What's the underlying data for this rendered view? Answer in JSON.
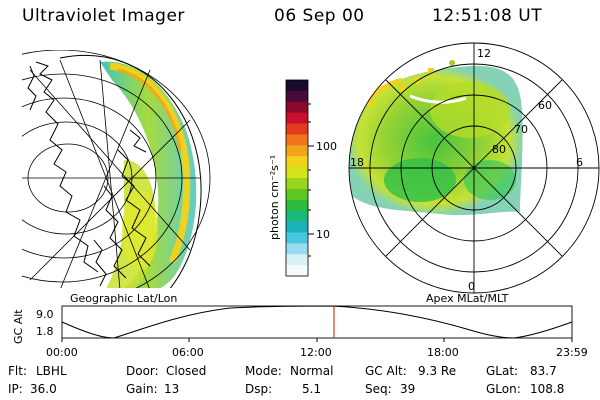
{
  "header": {
    "title": "Ultraviolet Imager",
    "date": "06 Sep 00",
    "time": "12:51:08 UT"
  },
  "left_panel": {
    "caption": "Geographic Lat/Lon"
  },
  "colorbar": {
    "unit_label": "photon cm⁻²s⁻¹",
    "ticks": [
      "100",
      "10"
    ],
    "colors": [
      "#1a0a2e",
      "#4a0a3c",
      "#8b0a2a",
      "#c8102e",
      "#e63a1c",
      "#f2741a",
      "#f2a51a",
      "#f2d21a",
      "#d4e51a",
      "#9ad41c",
      "#5ec81e",
      "#2ebc3e",
      "#1ab87a",
      "#1ab4b8",
      "#48c8e0",
      "#9adcee",
      "#d8f0f8",
      "#f4fbfd"
    ]
  },
  "polar_panel": {
    "caption": "Apex MLat/MLT",
    "mlt_labels": [
      "12",
      "18",
      "6",
      "0"
    ],
    "lat_labels": [
      "60",
      "70",
      "80"
    ]
  },
  "timeline": {
    "axis_title": "GC Alt",
    "y_ticks": [
      "9.0",
      "1.8"
    ],
    "x_ticks": [
      "00:00",
      "06:00",
      "12:00",
      "18:00",
      "23:59"
    ],
    "marker_color": "#c0392b"
  },
  "info": {
    "filter_label": "Flt:",
    "filter_value": "LBHL",
    "ip_label": "IP:",
    "ip_value": "36.0",
    "door_label": "Door:",
    "door_value": "Closed",
    "gain_label": "Gain:",
    "gain_value": "13",
    "mode_label": "Mode:",
    "mode_value": "Normal",
    "dsp_label": "Dsp:",
    "dsp_value": "5.1",
    "gcalt_label": "GC Alt:",
    "gcalt_value": "9.3 Re",
    "seq_label": "Seq:",
    "seq_value": "39",
    "glat_label": "GLat:",
    "glat_value": "83.7",
    "glon_label": "GLon:",
    "glon_value": "108.8"
  }
}
